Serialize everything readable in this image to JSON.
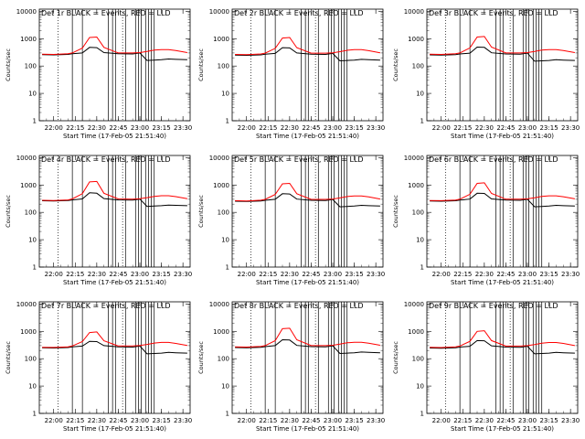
{
  "figure": {
    "x_tick_labels": [
      "22:00",
      "22:15",
      "22:30",
      "22:45",
      "23:00",
      "23:15",
      "23:30"
    ],
    "y_tick_labels": [
      "1",
      "10",
      "100",
      "1000",
      "10000"
    ]
  },
  "chart_data": [
    {
      "type": "line",
      "title": "Det 1r BLACK = Events, RED = LLD",
      "xlabel": "Start Time (17-Feb-05 21:51:40)",
      "ylabel": "Counts/sec",
      "yscale": "log",
      "ylim": [
        1,
        12000
      ],
      "x": [
        "21:52",
        "22:00",
        "22:10",
        "22:13",
        "22:20",
        "22:25",
        "22:30",
        "22:35",
        "22:45",
        "22:55",
        "23:00",
        "23:05",
        "23:10",
        "23:15",
        "23:20",
        "23:25",
        "23:33"
      ],
      "series": [
        {
          "name": "BLACK = Events",
          "color": "#000000",
          "values": [
            260,
            255,
            265,
            280,
            300,
            480,
            470,
            310,
            280,
            275,
            300,
            160,
            165,
            170,
            180,
            175,
            170
          ]
        },
        {
          "name": "RED = LLD",
          "color": "#ff0000",
          "values": [
            270,
            265,
            280,
            300,
            450,
            1100,
            1150,
            480,
            300,
            300,
            310,
            340,
            380,
            400,
            400,
            370,
            310
          ]
        }
      ]
    },
    {
      "type": "line",
      "title": "Det 2r BLACK = Events, RED = LLD",
      "xlabel": "Start Time (17-Feb-05 21:51:40)",
      "ylabel": "Counts/sec",
      "yscale": "log",
      "ylim": [
        1,
        12000
      ],
      "x": [
        "21:52",
        "22:00",
        "22:10",
        "22:13",
        "22:20",
        "22:25",
        "22:30",
        "22:35",
        "22:45",
        "22:55",
        "23:00",
        "23:05",
        "23:10",
        "23:15",
        "23:20",
        "23:25",
        "23:33"
      ],
      "series": [
        {
          "name": "BLACK = Events",
          "color": "#000000",
          "values": [
            250,
            245,
            255,
            270,
            290,
            470,
            460,
            300,
            270,
            265,
            290,
            155,
            160,
            165,
            175,
            170,
            165
          ]
        },
        {
          "name": "RED = LLD",
          "color": "#ff0000",
          "values": [
            265,
            260,
            275,
            295,
            440,
            1050,
            1100,
            470,
            295,
            295,
            305,
            335,
            375,
            395,
            395,
            365,
            305
          ]
        }
      ]
    },
    {
      "type": "line",
      "title": "Det 3r BLACK = Events, RED = LLD",
      "xlabel": "Start Time (17-Feb-05 21:51:40)",
      "ylabel": "Counts/sec",
      "yscale": "log",
      "ylim": [
        1,
        12000
      ],
      "x": [
        "21:52",
        "22:00",
        "22:10",
        "22:13",
        "22:20",
        "22:25",
        "22:30",
        "22:35",
        "22:45",
        "22:55",
        "23:00",
        "23:05",
        "23:10",
        "23:15",
        "23:20",
        "23:25",
        "23:33"
      ],
      "series": [
        {
          "name": "BLACK = Events",
          "color": "#000000",
          "values": [
            255,
            250,
            260,
            275,
            295,
            490,
            480,
            305,
            275,
            270,
            295,
            150,
            155,
            160,
            170,
            165,
            160
          ]
        },
        {
          "name": "RED = LLD",
          "color": "#ff0000",
          "values": [
            270,
            265,
            280,
            300,
            460,
            1150,
            1200,
            490,
            300,
            300,
            310,
            340,
            380,
            400,
            400,
            370,
            310
          ]
        }
      ]
    },
    {
      "type": "line",
      "title": "Det 4r BLACK = Events, RED = LLD",
      "xlabel": "Start Time (17-Feb-05 21:51:40)",
      "ylabel": "Counts/sec",
      "yscale": "log",
      "ylim": [
        1,
        12000
      ],
      "x": [
        "21:52",
        "22:00",
        "22:10",
        "22:13",
        "22:20",
        "22:25",
        "22:30",
        "22:35",
        "22:45",
        "22:55",
        "23:00",
        "23:05",
        "23:10",
        "23:15",
        "23:20",
        "23:25",
        "23:33"
      ],
      "series": [
        {
          "name": "BLACK = Events",
          "color": "#000000",
          "values": [
            265,
            260,
            270,
            285,
            310,
            520,
            500,
            320,
            285,
            280,
            305,
            165,
            170,
            175,
            185,
            180,
            175
          ]
        },
        {
          "name": "RED = LLD",
          "color": "#ff0000",
          "values": [
            275,
            270,
            285,
            310,
            480,
            1300,
            1350,
            500,
            310,
            305,
            315,
            345,
            385,
            405,
            405,
            375,
            315
          ]
        }
      ]
    },
    {
      "type": "line",
      "title": "Det 5r BLACK = Events, RED = LLD",
      "xlabel": "Start Time (17-Feb-05 21:51:40)",
      "ylabel": "Counts/sec",
      "yscale": "log",
      "ylim": [
        1,
        12000
      ],
      "x": [
        "21:52",
        "22:00",
        "22:10",
        "22:13",
        "22:20",
        "22:25",
        "22:30",
        "22:35",
        "22:45",
        "22:55",
        "23:00",
        "23:05",
        "23:10",
        "23:15",
        "23:20",
        "23:25",
        "23:33"
      ],
      "series": [
        {
          "name": "BLACK = Events",
          "color": "#000000",
          "values": [
            255,
            250,
            260,
            275,
            300,
            480,
            470,
            305,
            275,
            270,
            295,
            160,
            165,
            170,
            180,
            175,
            170
          ]
        },
        {
          "name": "RED = LLD",
          "color": "#ff0000",
          "values": [
            268,
            262,
            278,
            298,
            450,
            1100,
            1150,
            480,
            298,
            298,
            308,
            338,
            378,
            398,
            398,
            368,
            308
          ]
        }
      ]
    },
    {
      "type": "line",
      "title": "Det 6r BLACK = Events, RED = LLD",
      "xlabel": "Start Time (17-Feb-05 21:51:40)",
      "ylabel": "Counts/sec",
      "yscale": "log",
      "ylim": [
        1,
        12000
      ],
      "x": [
        "21:52",
        "22:00",
        "22:10",
        "22:13",
        "22:20",
        "22:25",
        "22:30",
        "22:35",
        "22:45",
        "22:55",
        "23:00",
        "23:05",
        "23:10",
        "23:15",
        "23:20",
        "23:25",
        "23:33"
      ],
      "series": [
        {
          "name": "BLACK = Events",
          "color": "#000000",
          "values": [
            260,
            255,
            265,
            280,
            305,
            500,
            490,
            310,
            280,
            275,
            300,
            160,
            165,
            170,
            180,
            175,
            170
          ]
        },
        {
          "name": "RED = LLD",
          "color": "#ff0000",
          "values": [
            272,
            268,
            282,
            302,
            460,
            1150,
            1200,
            490,
            302,
            302,
            312,
            342,
            382,
            402,
            402,
            372,
            312
          ]
        }
      ]
    },
    {
      "type": "line",
      "title": "Det 7r BLACK = Events, RED = LLD",
      "xlabel": "Start Time (17-Feb-05 21:51:40)",
      "ylabel": "Counts/sec",
      "yscale": "log",
      "ylim": [
        1,
        12000
      ],
      "x": [
        "21:52",
        "22:00",
        "22:10",
        "22:13",
        "22:20",
        "22:25",
        "22:30",
        "22:35",
        "22:45",
        "22:55",
        "23:00",
        "23:05",
        "23:10",
        "23:15",
        "23:20",
        "23:25",
        "23:33"
      ],
      "series": [
        {
          "name": "BLACK = Events",
          "color": "#000000",
          "values": [
            250,
            245,
            255,
            270,
            290,
            430,
            420,
            300,
            270,
            265,
            290,
            150,
            155,
            160,
            170,
            165,
            160
          ]
        },
        {
          "name": "RED = LLD",
          "color": "#ff0000",
          "values": [
            262,
            258,
            272,
            292,
            420,
            900,
            950,
            450,
            292,
            292,
            302,
            332,
            372,
            392,
            392,
            362,
            302
          ]
        }
      ]
    },
    {
      "type": "line",
      "title": "Det 8r BLACK = Events, RED = LLD",
      "xlabel": "Start Time (17-Feb-05 21:51:40)",
      "ylabel": "Counts/sec",
      "yscale": "log",
      "ylim": [
        1,
        12000
      ],
      "x": [
        "21:52",
        "22:00",
        "22:10",
        "22:13",
        "22:20",
        "22:25",
        "22:30",
        "22:35",
        "22:45",
        "22:55",
        "23:00",
        "23:05",
        "23:10",
        "23:15",
        "23:20",
        "23:25",
        "23:33"
      ],
      "series": [
        {
          "name": "BLACK = Events",
          "color": "#000000",
          "values": [
            255,
            250,
            260,
            275,
            300,
            490,
            480,
            305,
            275,
            270,
            295,
            155,
            160,
            165,
            175,
            170,
            165
          ]
        },
        {
          "name": "RED = LLD",
          "color": "#ff0000",
          "values": [
            270,
            265,
            280,
            300,
            455,
            1250,
            1300,
            490,
            300,
            300,
            310,
            340,
            380,
            400,
            400,
            370,
            310
          ]
        }
      ]
    },
    {
      "type": "line",
      "title": "Det 9r BLACK = Events, RED = LLD",
      "xlabel": "Start Time (17-Feb-05 21:51:40)",
      "ylabel": "Counts/sec",
      "yscale": "log",
      "ylim": [
        1,
        12000
      ],
      "x": [
        "21:52",
        "22:00",
        "22:10",
        "22:13",
        "22:20",
        "22:25",
        "22:30",
        "22:35",
        "22:45",
        "22:55",
        "23:00",
        "23:05",
        "23:10",
        "23:15",
        "23:20",
        "23:25",
        "23:33"
      ],
      "series": [
        {
          "name": "BLACK = Events",
          "color": "#000000",
          "values": [
            245,
            240,
            250,
            265,
            285,
            460,
            450,
            295,
            265,
            260,
            285,
            150,
            155,
            160,
            170,
            165,
            160
          ]
        },
        {
          "name": "RED = LLD",
          "color": "#ff0000",
          "values": [
            260,
            255,
            270,
            290,
            430,
            1000,
            1050,
            460,
            290,
            290,
            300,
            330,
            370,
            390,
            390,
            360,
            300
          ]
        }
      ]
    }
  ]
}
